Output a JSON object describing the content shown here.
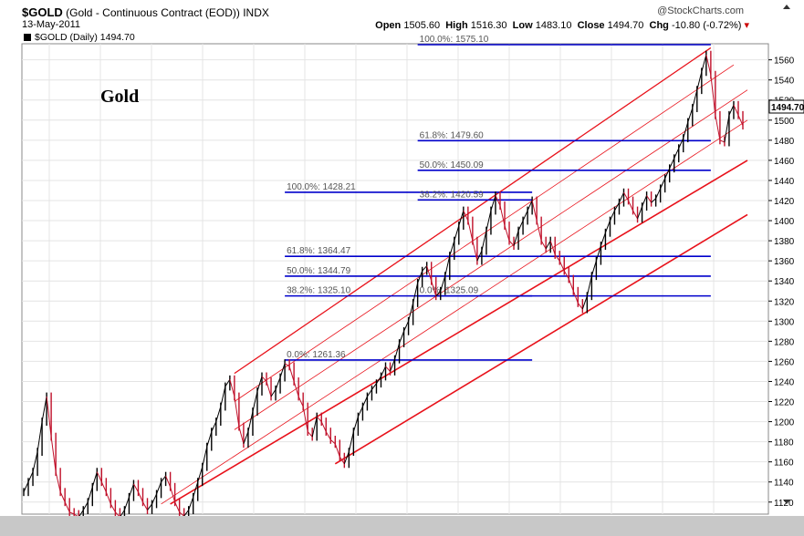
{
  "header": {
    "symbol": "$GOLD",
    "description": "(Gold - Continuous Contract (EOD)) INDX",
    "date": "13-May-2011",
    "legend": "$GOLD (Daily) 1494.70",
    "credit": "@StockCharts.com",
    "open_label": "Open",
    "open": "1505.60",
    "high_label": "High",
    "high": "1516.30",
    "low_label": "Low",
    "low": "1483.10",
    "close_label": "Close",
    "close": "1494.70",
    "chg_label": "Chg",
    "chg": "-10.80 (-0.72%)"
  },
  "chart_data": {
    "type": "line",
    "title": "Gold",
    "ylim": [
      1108,
      1576
    ],
    "y_ticks": [
      1120,
      1140,
      1160,
      1180,
      1200,
      1220,
      1240,
      1260,
      1280,
      1300,
      1320,
      1340,
      1360,
      1380,
      1400,
      1420,
      1440,
      1460,
      1480,
      1500,
      1520,
      1540,
      1560
    ],
    "grid": true,
    "last_price": "1494.70",
    "series": [
      {
        "values": [
          1130,
          1140,
          1150,
          1170,
          1200,
          1225,
          1185,
          1150,
          1130,
          1120,
          1110,
          1108,
          1105,
          1112,
          1120,
          1135,
          1150,
          1140,
          1130,
          1118,
          1110,
          1105,
          1112,
          1125,
          1138,
          1130,
          1120,
          1112,
          1118,
          1128,
          1140,
          1146,
          1135,
          1120,
          1110,
          1106,
          1112,
          1125,
          1140,
          1155,
          1175,
          1190,
          1200,
          1215,
          1235,
          1242,
          1225,
          1195,
          1178,
          1190,
          1210,
          1230,
          1245,
          1240,
          1225,
          1232,
          1244,
          1258,
          1255,
          1240,
          1225,
          1215,
          1190,
          1185,
          1205,
          1200,
          1190,
          1182,
          1178,
          1165,
          1158,
          1170,
          1190,
          1205,
          1215,
          1225,
          1232,
          1238,
          1245,
          1255,
          1250,
          1262,
          1278,
          1290,
          1300,
          1318,
          1338,
          1350,
          1355,
          1340,
          1325,
          1330,
          1345,
          1365,
          1380,
          1395,
          1410,
          1400,
          1380,
          1360,
          1370,
          1390,
          1410,
          1425,
          1415,
          1395,
          1380,
          1375,
          1390,
          1400,
          1410,
          1420,
          1400,
          1380,
          1372,
          1380,
          1366,
          1360,
          1350,
          1342,
          1330,
          1318,
          1312,
          1325,
          1345,
          1360,
          1375,
          1388,
          1400,
          1410,
          1418,
          1428,
          1420,
          1410,
          1402,
          1414,
          1425,
          1418,
          1422,
          1432,
          1442,
          1452,
          1462,
          1472,
          1482,
          1498,
          1512,
          1530,
          1548,
          1565,
          1545,
          1505,
          1480,
          1478,
          1505,
          1515,
          1505,
          1494.7
        ]
      }
    ],
    "fib_levels": [
      {
        "label": "100.0%: 1575.10",
        "value": 1575.1
      },
      {
        "label": "61.8%: 1479.60",
        "value": 1479.6
      },
      {
        "label": "50.0%: 1450.09",
        "value": 1450.09
      },
      {
        "label": "100.0%: 1428.21",
        "value": 1428.21
      },
      {
        "label": "38.2%: 1420.59",
        "value": 1420.59
      },
      {
        "label": "61.8%: 1364.47",
        "value": 1364.47
      },
      {
        "label": "50.0%: 1344.79",
        "value": 1344.79
      },
      {
        "label": "38.2%: 1325.10",
        "value": 1325.1
      },
      {
        "label": "0.0%: 1325.09",
        "value": 1325.09
      },
      {
        "label": "0.0%: 1261.36",
        "value": 1261.36
      }
    ],
    "channel_color": "#e8111a",
    "fib_color": "#0000cc",
    "price_color": "#000000",
    "down_color": "#c0102a"
  }
}
